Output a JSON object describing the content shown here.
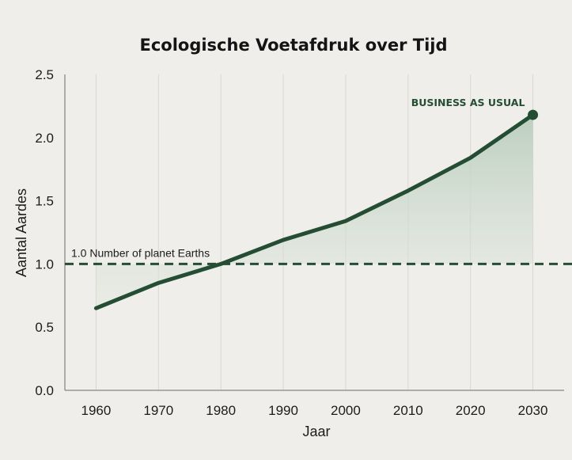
{
  "chart_data": {
    "type": "area",
    "title": "Ecologische Voetafdruk over Tijd",
    "xlabel": "Jaar",
    "ylabel": "Aantal Aardes",
    "x_ticks": [
      "1960",
      "1970",
      "1980",
      "1990",
      "2000",
      "2010",
      "2020",
      "2030"
    ],
    "y_ticks": [
      "0.0",
      "0.5",
      "1.0",
      "1.5",
      "2.0",
      "2.5"
    ],
    "xlim": [
      1955,
      2035
    ],
    "ylim": [
      0,
      2.5
    ],
    "series": [
      {
        "name": "BUSINESS AS USUAL",
        "x": [
          1960,
          1970,
          1980,
          1990,
          2000,
          2010,
          2020,
          2030
        ],
        "y": [
          0.65,
          0.85,
          1.0,
          1.19,
          1.34,
          1.58,
          1.84,
          2.18
        ]
      }
    ],
    "reference_line": {
      "y": 1.0,
      "label": "1.0 Number of planet Earths"
    },
    "grid": "vertical",
    "colors": {
      "line": "#244d33",
      "fill": "#c9d8cb",
      "background": "#efeeea"
    }
  }
}
